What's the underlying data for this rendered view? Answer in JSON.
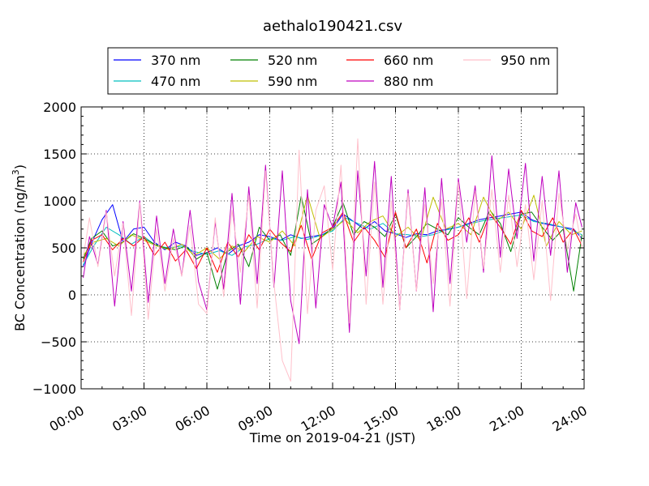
{
  "chart_data": {
    "type": "line",
    "title": "aethalo190421.csv",
    "xlabel": "Time on 2019-04-21 (JST)",
    "ylabel_main": "BC Concentration (ng/m",
    "ylabel_sup": "3",
    "ylabel_end": ")",
    "xlim_hours": [
      0,
      24
    ],
    "ylim": [
      -1000,
      2000
    ],
    "x_ticks_hours": [
      0,
      3,
      6,
      9,
      12,
      15,
      18,
      21,
      24
    ],
    "x_tick_labels": [
      "00:00",
      "03:00",
      "06:00",
      "09:00",
      "12:00",
      "15:00",
      "18:00",
      "21:00",
      "24:00"
    ],
    "y_ticks": [
      -1000,
      -500,
      0,
      500,
      1000,
      1500,
      2000
    ],
    "y_tick_labels": [
      "−1000",
      "−500",
      "0",
      "500",
      "1000",
      "1500",
      "2000"
    ],
    "grid": "dotted",
    "legend_position": "top-center",
    "series": [
      {
        "name": "370 nm",
        "color": "#0000ff",
        "hours": [
          0.1,
          0.5,
          1.0,
          1.5,
          2.0,
          2.5,
          3.0,
          3.5,
          4.0,
          4.5,
          5.0,
          5.5,
          6.0,
          6.5,
          7.0,
          7.5,
          8.0,
          8.5,
          9.0,
          9.5,
          10.0,
          10.5,
          11.0,
          11.5,
          12.0,
          12.5,
          13.0,
          13.5,
          14.0,
          14.5,
          15.0,
          15.5,
          16.0,
          16.5,
          17.0,
          17.5,
          18.0,
          18.5,
          19.0,
          19.5,
          20.0,
          20.5,
          21.0,
          21.5,
          22.0,
          22.5,
          23.0,
          23.5,
          23.9
        ],
        "values": [
          300,
          550,
          800,
          960,
          560,
          700,
          720,
          560,
          480,
          560,
          520,
          420,
          450,
          500,
          430,
          520,
          560,
          640,
          620,
          580,
          640,
          600,
          620,
          640,
          700,
          860,
          780,
          700,
          780,
          680,
          650,
          610,
          650,
          640,
          680,
          700,
          720,
          760,
          800,
          820,
          840,
          860,
          880,
          800,
          760,
          740,
          720,
          700,
          600
        ]
      },
      {
        "name": "470 nm",
        "color": "#00bfbf",
        "hours": [
          0.1,
          0.6,
          1.2,
          1.8,
          2.4,
          3.0,
          3.6,
          4.2,
          4.8,
          5.4,
          6.0,
          6.6,
          7.2,
          7.8,
          8.4,
          9.0,
          9.6,
          10.2,
          10.8,
          11.4,
          12.0,
          12.6,
          13.2,
          13.8,
          14.4,
          15.0,
          15.6,
          16.2,
          16.8,
          17.4,
          18.0,
          18.6,
          19.2,
          19.8,
          20.4,
          21.0,
          21.6,
          22.2,
          22.8,
          23.4,
          23.9
        ],
        "values": [
          320,
          520,
          720,
          640,
          540,
          620,
          520,
          500,
          520,
          460,
          430,
          470,
          420,
          510,
          540,
          600,
          580,
          620,
          590,
          630,
          680,
          820,
          760,
          700,
          760,
          650,
          640,
          620,
          640,
          690,
          720,
          760,
          790,
          810,
          830,
          850,
          780,
          760,
          730,
          690,
          640
        ]
      },
      {
        "name": "520 nm",
        "color": "#008000",
        "hours": [
          0.1,
          0.5,
          1.0,
          1.5,
          2.0,
          2.5,
          3.0,
          3.5,
          4.0,
          4.5,
          5.0,
          5.5,
          6.0,
          6.5,
          7.0,
          7.5,
          8.0,
          8.5,
          9.0,
          9.5,
          10.0,
          10.5,
          11.0,
          11.5,
          12.0,
          12.5,
          13.0,
          13.5,
          14.0,
          14.5,
          15.0,
          15.5,
          16.0,
          16.5,
          17.0,
          17.5,
          18.0,
          18.5,
          19.0,
          19.5,
          20.0,
          20.5,
          21.0,
          21.5,
          22.0,
          22.5,
          23.0,
          23.5,
          23.9
        ],
        "values": [
          380,
          600,
          680,
          520,
          560,
          650,
          600,
          540,
          500,
          480,
          520,
          380,
          450,
          60,
          460,
          540,
          300,
          720,
          580,
          640,
          420,
          1050,
          540,
          620,
          720,
          980,
          640,
          780,
          720,
          620,
          860,
          500,
          620,
          760,
          700,
          640,
          820,
          720,
          640,
          900,
          760,
          460,
          860,
          880,
          720,
          580,
          700,
          40,
          640
        ]
      },
      {
        "name": "590 nm",
        "color": "#bfbf00",
        "hours": [
          0.1,
          0.6,
          1.2,
          1.8,
          2.4,
          3.0,
          3.6,
          4.2,
          4.8,
          5.4,
          6.0,
          6.6,
          7.2,
          7.8,
          8.4,
          9.0,
          9.6,
          10.2,
          10.8,
          11.4,
          12.0,
          12.6,
          13.2,
          13.8,
          14.4,
          15.0,
          15.6,
          16.2,
          16.8,
          17.4,
          18.0,
          18.6,
          19.2,
          19.8,
          20.4,
          21.0,
          21.6,
          22.2,
          22.8,
          23.4,
          23.9
        ],
        "values": [
          420,
          560,
          600,
          520,
          640,
          580,
          520,
          480,
          540,
          420,
          500,
          380,
          520,
          460,
          620,
          560,
          680,
          520,
          1060,
          600,
          700,
          800,
          660,
          780,
          840,
          620,
          720,
          580,
          1040,
          700,
          760,
          640,
          1040,
          780,
          880,
          700,
          1060,
          520,
          780,
          640,
          680
        ]
      },
      {
        "name": "660 nm",
        "color": "#ff0000",
        "hours": [
          0.1,
          0.5,
          1.0,
          1.5,
          2.0,
          2.5,
          3.0,
          3.5,
          4.0,
          4.5,
          5.0,
          5.5,
          6.0,
          6.5,
          7.0,
          7.5,
          8.0,
          8.5,
          9.0,
          9.5,
          10.0,
          10.5,
          11.0,
          11.5,
          12.0,
          12.5,
          13.0,
          13.5,
          14.0,
          14.5,
          15.0,
          15.5,
          16.0,
          16.5,
          17.0,
          17.5,
          18.0,
          18.5,
          19.0,
          19.5,
          20.0,
          20.5,
          21.0,
          21.5,
          22.0,
          22.5,
          23.0,
          23.5,
          23.9
        ],
        "values": [
          350,
          580,
          640,
          480,
          600,
          520,
          620,
          420,
          560,
          360,
          480,
          280,
          500,
          240,
          560,
          400,
          640,
          480,
          700,
          560,
          460,
          740,
          380,
          660,
          720,
          880,
          560,
          720,
          580,
          400,
          880,
          500,
          700,
          340,
          760,
          580,
          640,
          820,
          560,
          860,
          720,
          540,
          900,
          680,
          620,
          820,
          560,
          700,
          520
        ]
      },
      {
        "name": "880 nm",
        "color": "#bf00bf",
        "hours": [
          0.1,
          0.4,
          0.8,
          1.2,
          1.6,
          2.0,
          2.4,
          2.8,
          3.2,
          3.6,
          4.0,
          4.4,
          4.8,
          5.2,
          5.6,
          6.0,
          6.4,
          6.8,
          7.2,
          7.6,
          8.0,
          8.4,
          8.8,
          9.2,
          9.6,
          10.0,
          10.4,
          10.8,
          11.2,
          11.6,
          12.0,
          12.4,
          12.8,
          13.2,
          13.6,
          14.0,
          14.4,
          14.8,
          15.2,
          15.6,
          16.0,
          16.4,
          16.8,
          17.2,
          17.6,
          18.0,
          18.4,
          18.8,
          19.2,
          19.6,
          20.0,
          20.4,
          20.8,
          21.2,
          21.6,
          22.0,
          22.4,
          22.8,
          23.2,
          23.6,
          23.9
        ],
        "values": [
          180,
          620,
          320,
          900,
          -120,
          780,
          40,
          1000,
          -80,
          840,
          120,
          700,
          200,
          900,
          140,
          -160,
          780,
          60,
          1080,
          -100,
          1150,
          120,
          1380,
          80,
          1320,
          -60,
          -520,
          1120,
          -140,
          960,
          720,
          1200,
          -400,
          1320,
          200,
          1420,
          80,
          1260,
          -160,
          1120,
          40,
          1140,
          -180,
          1240,
          120,
          1240,
          560,
          1160,
          240,
          1480,
          400,
          1340,
          600,
          1400,
          360,
          1260,
          420,
          1320,
          240,
          980,
          720
        ]
      },
      {
        "name": "950 nm",
        "color": "#ffc0cb",
        "hours": [
          0.1,
          0.4,
          0.8,
          1.2,
          1.6,
          2.0,
          2.4,
          2.8,
          3.2,
          3.6,
          4.0,
          4.4,
          4.8,
          5.2,
          5.6,
          6.0,
          6.4,
          6.8,
          7.2,
          7.6,
          8.0,
          8.4,
          8.8,
          9.2,
          9.6,
          10.0,
          10.4,
          10.8,
          11.2,
          11.6,
          12.0,
          12.4,
          12.8,
          13.2,
          13.6,
          14.0,
          14.4,
          14.8,
          15.2,
          15.6,
          16.0,
          16.4,
          16.8,
          17.2,
          17.6,
          18.0,
          18.4,
          18.8,
          19.2,
          19.6,
          20.0,
          20.4,
          20.8,
          21.2,
          21.6,
          22.0,
          22.4,
          22.8,
          23.2,
          23.6,
          23.9
        ],
        "values": [
          400,
          820,
          300,
          880,
          200,
          760,
          -220,
          980,
          -260,
          700,
          40,
          600,
          200,
          740,
          -100,
          -200,
          820,
          -20,
          900,
          240,
          1060,
          -140,
          1320,
          120,
          -700,
          -920,
          1540,
          -200,
          900,
          1160,
          260,
          1380,
          -300,
          1660,
          -100,
          1200,
          -100,
          1000,
          -160,
          1080,
          40,
          960,
          120,
          1020,
          -120,
          1200,
          -40,
          1100,
          280,
          1120,
          240,
          1060,
          300,
          960,
          160,
          1000,
          -60,
          1080,
          480,
          860,
          500
        ]
      }
    ]
  }
}
